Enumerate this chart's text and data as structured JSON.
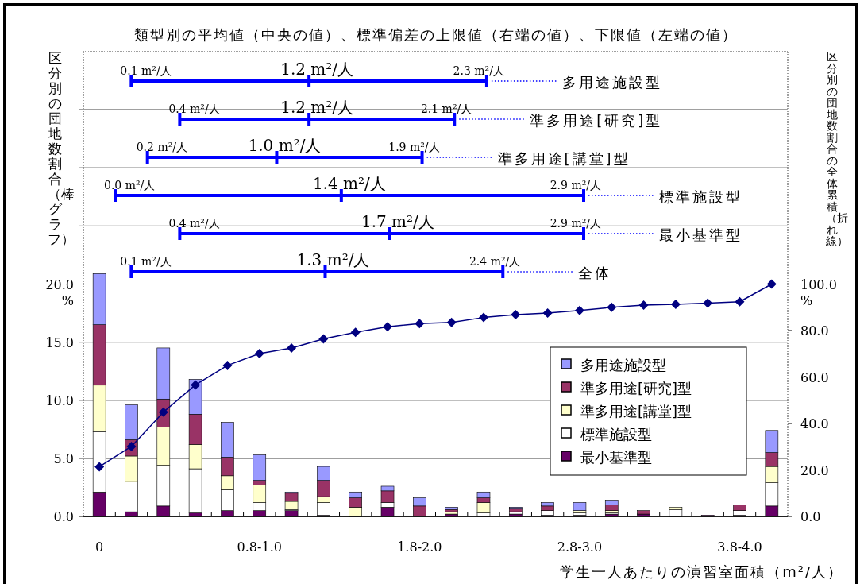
{
  "chart_data": [
    {
      "type": "other",
      "title": "類型別の平均値（中央の値）、標準偏差の上限値（右端の値）、下限値（左端の値）",
      "color": "#0000ff",
      "categories": [
        "多用途施設型",
        "準多用途[研究]型",
        "準多用途[講堂]型",
        "標準施設型",
        "最小基準型",
        "全体"
      ],
      "annotations": [
        "0.1 m²/人",
        "1.2 m²/人",
        "2.3 m²/人",
        "0.4 m²/人",
        "1.2 m²/人",
        "2.1 m²/人",
        "0.2 m²/人",
        "1.0 m²/人",
        "1.9 m²/人",
        "0.0 m²/人",
        "1.4 m²/人",
        "2.9 m²/人",
        "0.4 m²/人",
        "1.7 m²/人",
        "2.9 m²/人",
        "0.1 m²/人",
        "1.3 m²/人",
        "2.4 m²/人"
      ]
    },
    {
      "type": "bar",
      "stacked": true,
      "xlabel": "学生一人あたりの演習室面積（m²/人）",
      "ylabel": "区分別の団地数割合（棒グラフ）",
      "y2label": "区分別の団地数割合の全体累積（折れ線）",
      "categories": [
        "0",
        null,
        null,
        null,
        null,
        "0.8-1.0",
        null,
        null,
        null,
        null,
        "1.8-2.0",
        null,
        null,
        null,
        null,
        "2.8-3.0",
        null,
        null,
        null,
        null,
        "3.8-4.0",
        null
      ],
      "ylim": [
        0,
        40
      ],
      "yticks": [
        {
          "value": 0,
          "label": "0.0"
        },
        {
          "value": 5,
          "label": "5.0"
        },
        {
          "value": 10,
          "label": "10.0"
        },
        {
          "value": 15,
          "label": "15.0"
        },
        {
          "value": 20,
          "label": "20.0 %"
        },
        {
          "value": 25,
          "label": null
        },
        {
          "value": 30,
          "label": null
        },
        {
          "value": 35,
          "label": null
        }
      ],
      "y2lim": [
        0,
        200
      ],
      "y2ticks": [
        {
          "value": 0,
          "label": "0.0"
        },
        {
          "value": 20,
          "label": "20.0"
        },
        {
          "value": 40,
          "label": "40.0"
        },
        {
          "value": 60,
          "label": "60.0"
        },
        {
          "value": 80,
          "label": "80.0"
        },
        {
          "value": 100,
          "label": "100.0 %"
        }
      ],
      "grid": "y",
      "legend": "right",
      "marker": "diamond",
      "series": [
        {
          "name": "最小基準型",
          "color": "#660066",
          "values": [
            2.1,
            0.4,
            0.9,
            0.3,
            0.5,
            0.5,
            0.5,
            0.1,
            0,
            0.8,
            0,
            0.2,
            0,
            0.2,
            0.1,
            0.1,
            0.2,
            0.2,
            0,
            0.1,
            0.1,
            0.9
          ]
        },
        {
          "name": "標準施設型",
          "color": "#ffffff",
          "values": [
            5.2,
            2.6,
            3.5,
            3.8,
            1.8,
            0.7,
            0.1,
            1.1,
            0,
            0.4,
            0,
            0,
            0.3,
            0.2,
            0.4,
            0.2,
            0.1,
            0,
            0.6,
            0,
            0.4,
            2.0
          ]
        },
        {
          "name": "準多用途[講堂]型",
          "color": "#ffffcc",
          "values": [
            4.0,
            2.2,
            3.3,
            2.1,
            1.2,
            1.5,
            0.7,
            0.5,
            0.8,
            0,
            0,
            0.2,
            0.9,
            0,
            0,
            0.2,
            0.2,
            0,
            0.2,
            0,
            0,
            1.4
          ]
        },
        {
          "name": "準多用途[研究]型",
          "color": "#993366",
          "values": [
            5.2,
            1.4,
            2.4,
            2.6,
            1.6,
            0.4,
            0.7,
            1.4,
            0.8,
            1.0,
            0.9,
            0.2,
            0.4,
            0.3,
            0.4,
            0,
            0.5,
            0.3,
            0,
            0,
            0.5,
            1.2
          ]
        },
        {
          "name": "多用途施設型",
          "color": "#9999ff",
          "values": [
            4.4,
            3.0,
            4.4,
            3.0,
            3.0,
            2.2,
            0.1,
            1.2,
            0.5,
            0.4,
            0.7,
            0.2,
            0.5,
            0.1,
            0.3,
            0.7,
            0.4,
            0,
            0,
            0,
            0,
            1.9
          ]
        },
        {
          "type": "line",
          "axis": "y2",
          "color": "#000080",
          "values": [
            21.4,
            30.1,
            44.9,
            56.6,
            65.0,
            70.1,
            72.5,
            76.4,
            79.2,
            81.6,
            83.0,
            83.5,
            85.6,
            86.8,
            87.5,
            88.6,
            90.0,
            90.9,
            91.3,
            91.8,
            92.4,
            100
          ]
        }
      ]
    }
  ]
}
